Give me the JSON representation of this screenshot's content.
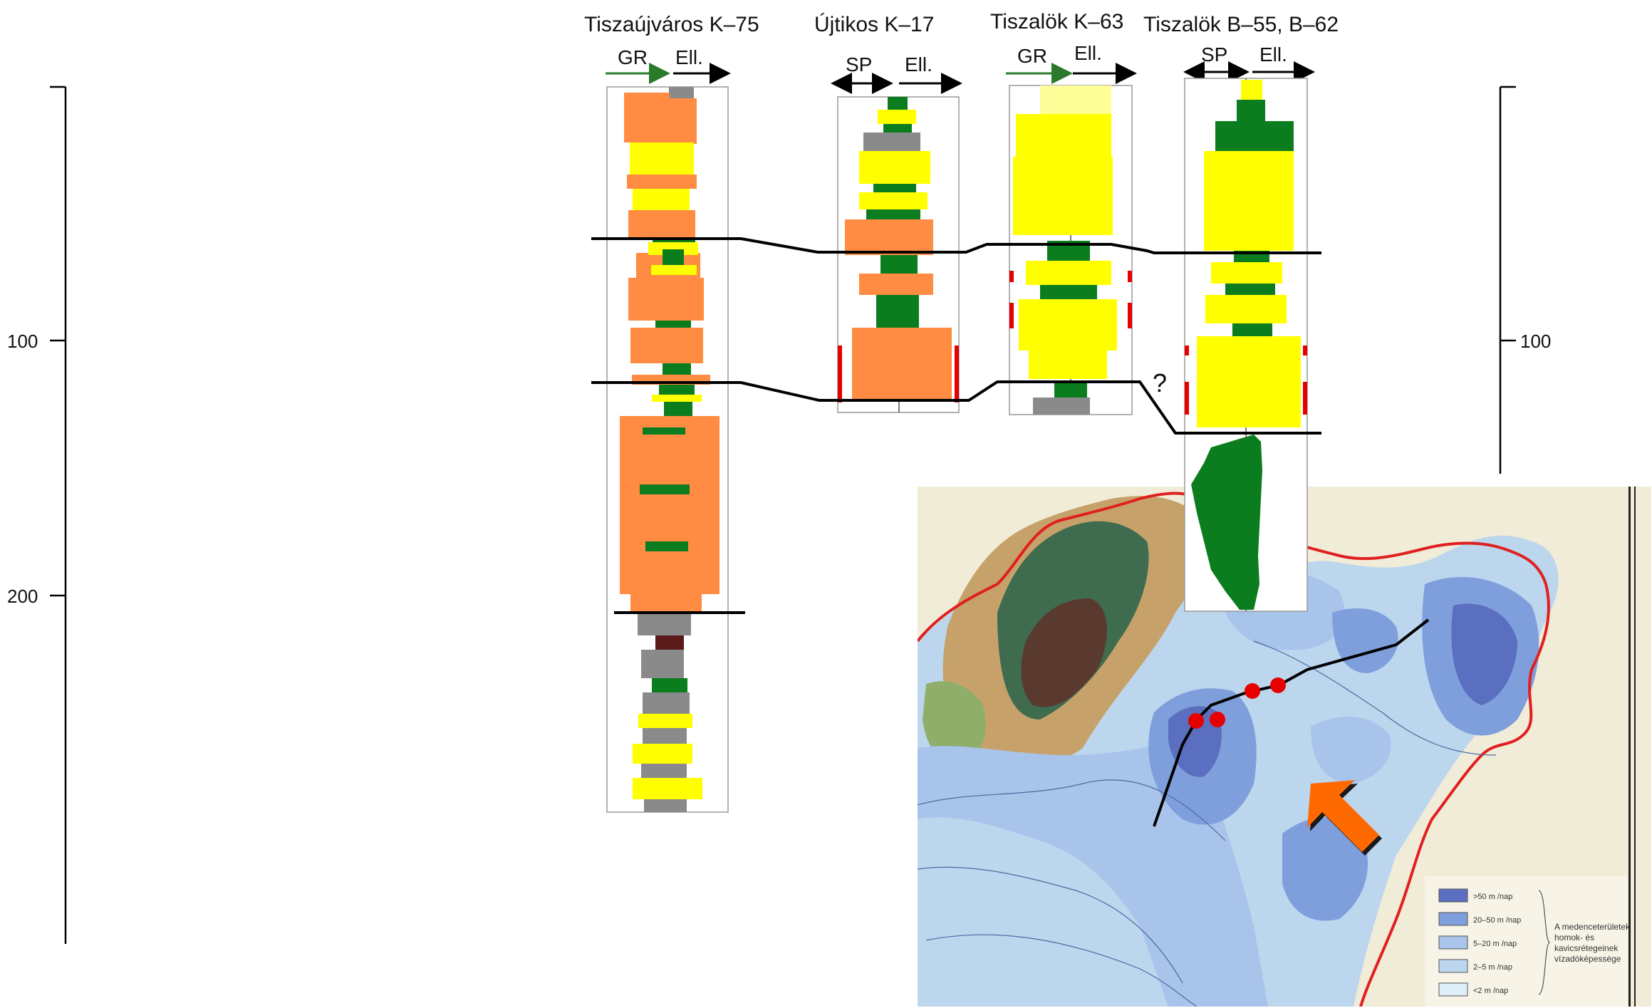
{
  "colors": {
    "sand": "#ffff00",
    "clay": "#ff8c42",
    "shale_green": "#0b7d1e",
    "gray": "#8a8a8a",
    "red_marker": "#e60000",
    "arrow": "#ff6a00",
    "gr_arrow": "#2a7a2a",
    "border_red": "#e02020"
  },
  "depth_scale": {
    "left_labels": [
      "100",
      "200"
    ],
    "right_labels": [
      "100"
    ]
  },
  "wells": [
    {
      "id": "tiszaujvaros",
      "title": "Tiszaújváros K–75",
      "left_log": "GR",
      "right_log": "Ell."
    },
    {
      "id": "ujtikos",
      "title": "Újtikos K–17",
      "left_log": "SP",
      "right_log": "Ell."
    },
    {
      "id": "tiszalok_k63",
      "title": "Tiszalök K–63",
      "left_log": "GR",
      "right_log": "Ell."
    },
    {
      "id": "tiszalok_b55",
      "title": "Tiszalök B–55, B–62",
      "left_log": "SP",
      "right_log": "Ell."
    }
  ],
  "correlation": {
    "question_mark": "?"
  },
  "map": {
    "legend": [
      {
        "label": ">50 m  /nap",
        "color": "#5a6fbf"
      },
      {
        "label": "20–50 m  /nap",
        "color": "#7f9fdc"
      },
      {
        "label": "5–20 m  /nap",
        "color": "#a8c4ea"
      },
      {
        "label": "2–5 m  /nap",
        "color": "#bcd6ee"
      },
      {
        "label": "<2 m  /nap",
        "color": "#ddeef7"
      }
    ],
    "legend_note": [
      "A medenceterületek",
      "homok- és",
      "kavicsrétegeinek",
      "vízadóképessége"
    ]
  }
}
